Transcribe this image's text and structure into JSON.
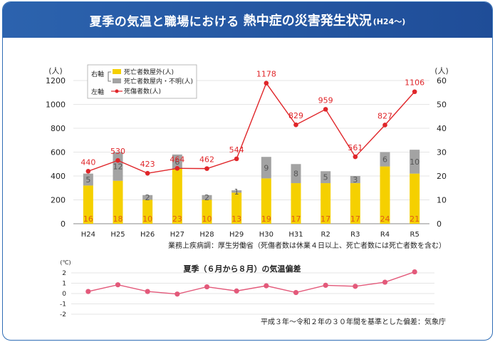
{
  "header": {
    "title_part1": "夏季の気温と職場における",
    "title_part2": "熱中症の災害発生状況",
    "title_part3": "(H24〜)"
  },
  "chart_data": [
    {
      "type": "bar",
      "categories": [
        "H24",
        "H25",
        "H26",
        "H27",
        "H28",
        "H29",
        "H30",
        "H31",
        "R2",
        "R3",
        "R4",
        "R5"
      ],
      "left_unit": "(人)",
      "right_unit": "(人)",
      "left_axis_label": "左軸",
      "right_axis_label": "右軸",
      "left_ticks": [
        0,
        200,
        400,
        600,
        800,
        1000,
        1200
      ],
      "right_ticks": [
        0,
        10,
        20,
        30,
        40,
        50,
        60
      ],
      "left_ylim": [
        0,
        1200
      ],
      "right_ylim": [
        0,
        60
      ],
      "series": [
        {
          "name": "死亡者数屋外(人)",
          "axis": "right",
          "color": "#f5d000",
          "values": [
            16,
            18,
            10,
            23,
            10,
            13,
            19,
            17,
            17,
            17,
            24,
            21
          ]
        },
        {
          "name": "死亡者数屋内・不明(人)",
          "axis": "right",
          "color": "#a3a3a3",
          "values": [
            5,
            12,
            2,
            6,
            2,
            1,
            9,
            8,
            5,
            3,
            6,
            10
          ]
        },
        {
          "name": "死傷者数(人)",
          "axis": "left",
          "color": "#e0262a",
          "values": [
            440,
            530,
            423,
            464,
            462,
            544,
            1178,
            829,
            959,
            561,
            827,
            1106
          ]
        }
      ],
      "source_note": "業務上疾病調：厚生労働省（死傷者数は休業４日以上、死亡者数には死亡者数を含む）"
    },
    {
      "type": "line",
      "title": "夏季（６月から８月）の気温偏差",
      "unit": "(℃)",
      "categories": [
        "H24",
        "H25",
        "H26",
        "H27",
        "H28",
        "H29",
        "H30",
        "H31",
        "R2",
        "R3",
        "R4",
        "R5"
      ],
      "ylim": [
        -2,
        2
      ],
      "ticks": [
        2,
        1,
        0,
        -1,
        -2
      ],
      "color": "#e3597a",
      "values": [
        0.2,
        0.85,
        0.2,
        -0.05,
        0.65,
        0.25,
        0.75,
        0.1,
        0.8,
        0.7,
        1.1,
        2.1
      ],
      "source_note": "平成３年〜令和２年の３０年間を基準とした偏差：気象庁"
    }
  ]
}
